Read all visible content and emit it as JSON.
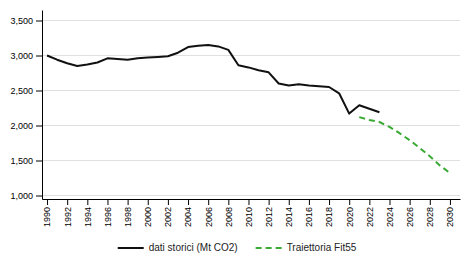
{
  "chart_data": {
    "type": "line",
    "series": [
      {
        "name": "dati storici (Mt CO2)",
        "color": "#111111",
        "line_style": "solid",
        "x": [
          1990,
          1991,
          1992,
          1993,
          1994,
          1995,
          1996,
          1997,
          1998,
          1999,
          2000,
          2001,
          2002,
          2003,
          2004,
          2005,
          2006,
          2007,
          2008,
          2009,
          2010,
          2011,
          2012,
          2013,
          2014,
          2015,
          2016,
          2017,
          2018,
          2019,
          2020,
          2021,
          2022,
          2023
        ],
        "values": [
          3000,
          2940,
          2890,
          2850,
          2870,
          2900,
          2960,
          2950,
          2940,
          2960,
          2970,
          2980,
          2990,
          3040,
          3120,
          3140,
          3150,
          3130,
          3080,
          2860,
          2830,
          2790,
          2760,
          2600,
          2570,
          2590,
          2570,
          2560,
          2550,
          2460,
          2170,
          2290,
          2240,
          2190
        ]
      },
      {
        "name": "Traiettoria Fit55",
        "color": "#3aaa35",
        "line_style": "dashed",
        "x": [
          2021,
          2022,
          2023,
          2024,
          2025,
          2026,
          2027,
          2028,
          2029,
          2030
        ],
        "values": [
          2120,
          2080,
          2050,
          1980,
          1890,
          1790,
          1680,
          1560,
          1430,
          1320
        ]
      }
    ],
    "xlim": [
      1989.5,
      2031
    ],
    "xticks": [
      1990,
      1992,
      1994,
      1996,
      1998,
      2000,
      2002,
      2004,
      2006,
      2008,
      2010,
      2012,
      2014,
      2016,
      2018,
      2020,
      2022,
      2024,
      2026,
      2028,
      2030
    ],
    "ylim": [
      950,
      3650
    ],
    "yticks": [
      {
        "value": 1000,
        "label": "1,000"
      },
      {
        "value": 1500,
        "label": "1,500"
      },
      {
        "value": 2000,
        "label": "2,000"
      },
      {
        "value": 2500,
        "label": "2,500"
      },
      {
        "value": 3000,
        "label": "3,000"
      },
      {
        "value": 3500,
        "label": "3,500"
      }
    ],
    "grid": true,
    "legend": "bottom"
  }
}
